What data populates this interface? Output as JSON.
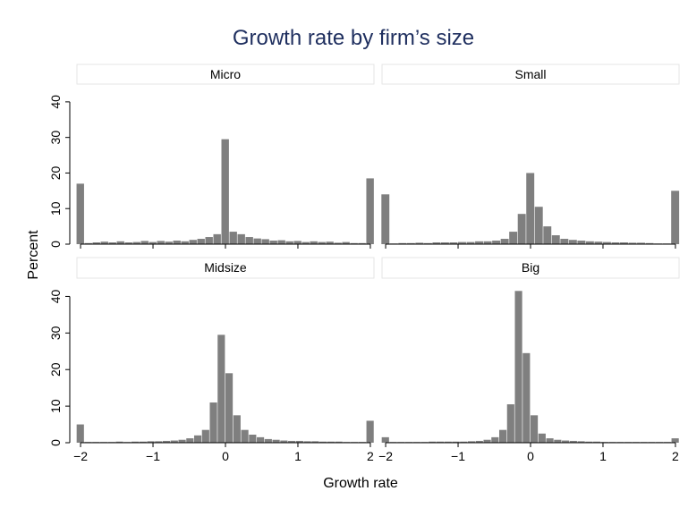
{
  "chart_data": {
    "type": "bar",
    "title": "Growth rate by firm’s size",
    "xlabel": "Growth rate",
    "ylabel": "Percent",
    "xlim": [
      -2.05,
      2.05
    ],
    "ylim": [
      0,
      45
    ],
    "xticks": [
      -2,
      -1,
      0,
      1,
      2
    ],
    "xtick_labels": [
      "−2",
      "−1",
      "0",
      "1",
      "2"
    ],
    "yticks": [
      0,
      10,
      20,
      30,
      40
    ],
    "ytick_labels": [
      "0",
      "10",
      "20",
      "30",
      "40"
    ],
    "bin_width": 0.1,
    "bin_start": -2.0,
    "bar_color": "#7f7f7f",
    "panel_header_fill": "#ffffff",
    "title_color": "#1f2f5f",
    "panels": [
      {
        "name": "Micro",
        "values": [
          17,
          0.3,
          0.5,
          0.7,
          0.5,
          0.8,
          0.5,
          0.6,
          0.9,
          0.6,
          0.9,
          0.7,
          1.0,
          0.8,
          1.2,
          1.5,
          2.0,
          2.8,
          29.5,
          3.5,
          2.8,
          2.0,
          1.6,
          1.4,
          1.0,
          1.1,
          0.8,
          0.9,
          0.6,
          0.8,
          0.6,
          0.7,
          0.4,
          0.6,
          0.3,
          0.3,
          18.5
        ]
      },
      {
        "name": "Small",
        "values": [
          14,
          0.2,
          0.3,
          0.3,
          0.4,
          0.3,
          0.5,
          0.5,
          0.5,
          0.6,
          0.6,
          0.8,
          0.8,
          1.0,
          1.5,
          3.5,
          8.5,
          20.0,
          10.5,
          5.0,
          2.5,
          1.5,
          1.2,
          1.0,
          0.8,
          0.7,
          0.6,
          0.5,
          0.5,
          0.4,
          0.4,
          0.3,
          0.2,
          0.2,
          15.0
        ]
      },
      {
        "name": "Midsize",
        "values": [
          5.0,
          0.2,
          0.2,
          0.2,
          0.2,
          0.3,
          0.2,
          0.3,
          0.3,
          0.4,
          0.4,
          0.5,
          0.6,
          0.8,
          1.2,
          2.0,
          3.5,
          11.0,
          29.5,
          19.0,
          7.5,
          3.5,
          2.2,
          1.5,
          1.0,
          0.8,
          0.6,
          0.5,
          0.5,
          0.4,
          0.4,
          0.3,
          0.3,
          0.3,
          0.2,
          0.2,
          0.2,
          6.0
        ]
      },
      {
        "name": "Big",
        "values": [
          1.5,
          0.2,
          0.2,
          0.2,
          0.2,
          0.2,
          0.3,
          0.3,
          0.3,
          0.3,
          0.3,
          0.4,
          0.5,
          0.8,
          1.5,
          3.5,
          10.5,
          41.5,
          24.5,
          7.5,
          2.5,
          1.2,
          0.8,
          0.6,
          0.5,
          0.4,
          0.3,
          0.3,
          0.2,
          0.2,
          0.2,
          0.2,
          0.2,
          0.2,
          0.2,
          0.2,
          0.2,
          1.2
        ]
      }
    ]
  }
}
